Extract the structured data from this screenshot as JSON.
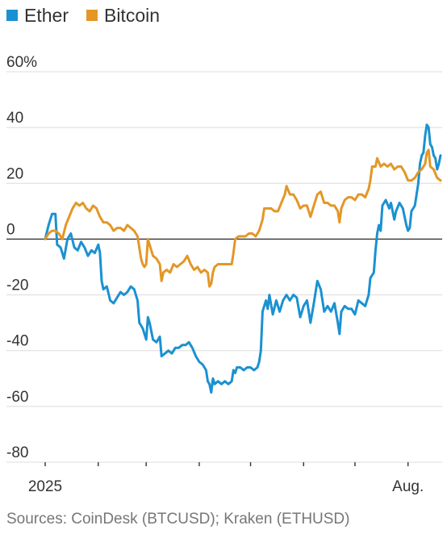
{
  "chart_data": {
    "type": "line",
    "legend_position": "top-left",
    "grid": true,
    "ylim": [
      -80,
      60
    ],
    "y_ticks": [
      {
        "value": 60,
        "label": "60%"
      },
      {
        "value": 40,
        "label": "40"
      },
      {
        "value": 20,
        "label": "20"
      },
      {
        "value": 0,
        "label": "0"
      },
      {
        "value": -20,
        "label": "-20"
      },
      {
        "value": -40,
        "label": "-40"
      },
      {
        "value": -60,
        "label": "-60"
      },
      {
        "value": -80,
        "label": "-80"
      }
    ],
    "x_range": [
      "2025-01-01",
      "2025-08-20"
    ],
    "x_ticks": [
      "2025-01-01",
      "2025-02-01",
      "2025-03-01",
      "2025-04-01",
      "2025-05-01",
      "2025-06-01",
      "2025-07-01",
      "2025-08-01"
    ],
    "x_tick_labels": [
      {
        "date": "2025-01-01",
        "label": "2025"
      },
      {
        "date": "2025-08-01",
        "label": "Aug."
      }
    ],
    "series": [
      {
        "name": "Ether",
        "color": "#1b91d1",
        "points": [
          [
            "2025-01-01",
            0
          ],
          [
            "2025-01-03",
            5
          ],
          [
            "2025-01-05",
            9
          ],
          [
            "2025-01-07",
            9
          ],
          [
            "2025-01-08",
            -2
          ],
          [
            "2025-01-10",
            -3
          ],
          [
            "2025-01-12",
            -7
          ],
          [
            "2025-01-14",
            0
          ],
          [
            "2025-01-16",
            2
          ],
          [
            "2025-01-18",
            -3
          ],
          [
            "2025-01-20",
            -4
          ],
          [
            "2025-01-22",
            -1
          ],
          [
            "2025-01-24",
            -3
          ],
          [
            "2025-01-26",
            -6
          ],
          [
            "2025-01-28",
            -4
          ],
          [
            "2025-01-30",
            -5
          ],
          [
            "2025-02-01",
            -2
          ],
          [
            "2025-02-02",
            -5
          ],
          [
            "2025-02-03",
            -15
          ],
          [
            "2025-02-04",
            -18
          ],
          [
            "2025-02-06",
            -17
          ],
          [
            "2025-02-08",
            -22
          ],
          [
            "2025-02-10",
            -23
          ],
          [
            "2025-02-12",
            -21
          ],
          [
            "2025-02-14",
            -19
          ],
          [
            "2025-02-16",
            -20
          ],
          [
            "2025-02-18",
            -19
          ],
          [
            "2025-02-20",
            -17
          ],
          [
            "2025-02-22",
            -18
          ],
          [
            "2025-02-24",
            -22
          ],
          [
            "2025-02-25",
            -30
          ],
          [
            "2025-02-27",
            -32
          ],
          [
            "2025-02-28",
            -34
          ],
          [
            "2025-03-01",
            -36
          ],
          [
            "2025-03-02",
            -28
          ],
          [
            "2025-03-03",
            -30
          ],
          [
            "2025-03-05",
            -36
          ],
          [
            "2025-03-07",
            -37
          ],
          [
            "2025-03-09",
            -35
          ],
          [
            "2025-03-10",
            -42
          ],
          [
            "2025-03-12",
            -41
          ],
          [
            "2025-03-14",
            -40
          ],
          [
            "2025-03-16",
            -41
          ],
          [
            "2025-03-18",
            -39
          ],
          [
            "2025-03-20",
            -39
          ],
          [
            "2025-03-22",
            -38
          ],
          [
            "2025-03-24",
            -38
          ],
          [
            "2025-03-26",
            -37
          ],
          [
            "2025-03-28",
            -39
          ],
          [
            "2025-03-30",
            -42
          ],
          [
            "2025-04-01",
            -44
          ],
          [
            "2025-04-03",
            -45
          ],
          [
            "2025-04-05",
            -47
          ],
          [
            "2025-04-06",
            -51
          ],
          [
            "2025-04-07",
            -52
          ],
          [
            "2025-04-08",
            -55
          ],
          [
            "2025-04-09",
            -50
          ],
          [
            "2025-04-10",
            -52
          ],
          [
            "2025-04-12",
            -51
          ],
          [
            "2025-04-14",
            -52
          ],
          [
            "2025-04-16",
            -51
          ],
          [
            "2025-04-18",
            -52
          ],
          [
            "2025-04-20",
            -51
          ],
          [
            "2025-04-21",
            -47
          ],
          [
            "2025-04-22",
            -48
          ],
          [
            "2025-04-23",
            -46
          ],
          [
            "2025-04-25",
            -46
          ],
          [
            "2025-04-27",
            -47
          ],
          [
            "2025-04-29",
            -46
          ],
          [
            "2025-05-01",
            -46
          ],
          [
            "2025-05-03",
            -47
          ],
          [
            "2025-05-05",
            -46
          ],
          [
            "2025-05-06",
            -44
          ],
          [
            "2025-05-07",
            -40
          ],
          [
            "2025-05-08",
            -26
          ],
          [
            "2025-05-09",
            -24
          ],
          [
            "2025-05-10",
            -22
          ],
          [
            "2025-05-11",
            -25
          ],
          [
            "2025-05-12",
            -20
          ],
          [
            "2025-05-14",
            -27
          ],
          [
            "2025-05-16",
            -22
          ],
          [
            "2025-05-18",
            -26
          ],
          [
            "2025-05-20",
            -22
          ],
          [
            "2025-05-22",
            -20
          ],
          [
            "2025-05-24",
            -22
          ],
          [
            "2025-05-26",
            -20
          ],
          [
            "2025-05-28",
            -21
          ],
          [
            "2025-05-30",
            -28
          ],
          [
            "2025-06-01",
            -24
          ],
          [
            "2025-06-03",
            -22
          ],
          [
            "2025-06-05",
            -30
          ],
          [
            "2025-06-07",
            -23
          ],
          [
            "2025-06-09",
            -15
          ],
          [
            "2025-06-11",
            -18
          ],
          [
            "2025-06-13",
            -26
          ],
          [
            "2025-06-15",
            -24
          ],
          [
            "2025-06-17",
            -26
          ],
          [
            "2025-06-19",
            -23
          ],
          [
            "2025-06-21",
            -30
          ],
          [
            "2025-06-22",
            -34
          ],
          [
            "2025-06-23",
            -26
          ],
          [
            "2025-06-25",
            -24
          ],
          [
            "2025-06-27",
            -25
          ],
          [
            "2025-06-29",
            -25
          ],
          [
            "2025-07-01",
            -27
          ],
          [
            "2025-07-03",
            -22
          ],
          [
            "2025-07-05",
            -23
          ],
          [
            "2025-07-07",
            -24
          ],
          [
            "2025-07-09",
            -20
          ],
          [
            "2025-07-10",
            -14
          ],
          [
            "2025-07-12",
            -12
          ],
          [
            "2025-07-13",
            -4
          ],
          [
            "2025-07-14",
            2
          ],
          [
            "2025-07-15",
            5
          ],
          [
            "2025-07-16",
            3
          ],
          [
            "2025-07-17",
            12
          ],
          [
            "2025-07-19",
            14
          ],
          [
            "2025-07-21",
            11
          ],
          [
            "2025-07-22",
            13
          ],
          [
            "2025-07-24",
            7
          ],
          [
            "2025-07-25",
            10
          ],
          [
            "2025-07-27",
            13
          ],
          [
            "2025-07-29",
            11
          ],
          [
            "2025-07-31",
            5
          ],
          [
            "2025-08-01",
            3
          ],
          [
            "2025-08-02",
            4
          ],
          [
            "2025-08-03",
            10
          ],
          [
            "2025-08-05",
            12
          ],
          [
            "2025-08-07",
            20
          ],
          [
            "2025-08-08",
            27
          ],
          [
            "2025-08-09",
            30
          ],
          [
            "2025-08-10",
            31
          ],
          [
            "2025-08-11",
            37
          ],
          [
            "2025-08-12",
            41
          ],
          [
            "2025-08-13",
            40
          ],
          [
            "2025-08-14",
            34
          ],
          [
            "2025-08-15",
            33
          ],
          [
            "2025-08-16",
            30
          ],
          [
            "2025-08-17",
            29
          ],
          [
            "2025-08-18",
            25
          ],
          [
            "2025-08-19",
            27
          ],
          [
            "2025-08-20",
            30
          ]
        ]
      },
      {
        "name": "Bitcoin",
        "color": "#e39727",
        "points": [
          [
            "2025-01-01",
            0
          ],
          [
            "2025-01-03",
            2
          ],
          [
            "2025-01-05",
            3
          ],
          [
            "2025-01-07",
            3
          ],
          [
            "2025-01-09",
            2
          ],
          [
            "2025-01-11",
            0
          ],
          [
            "2025-01-13",
            5
          ],
          [
            "2025-01-15",
            8
          ],
          [
            "2025-01-17",
            11
          ],
          [
            "2025-01-19",
            13
          ],
          [
            "2025-01-21",
            12
          ],
          [
            "2025-01-23",
            13
          ],
          [
            "2025-01-25",
            11
          ],
          [
            "2025-01-27",
            10
          ],
          [
            "2025-01-29",
            12
          ],
          [
            "2025-01-31",
            11
          ],
          [
            "2025-02-02",
            8
          ],
          [
            "2025-02-04",
            6
          ],
          [
            "2025-02-06",
            6
          ],
          [
            "2025-02-08",
            5
          ],
          [
            "2025-02-10",
            3
          ],
          [
            "2025-02-12",
            4
          ],
          [
            "2025-02-14",
            4
          ],
          [
            "2025-02-16",
            3
          ],
          [
            "2025-02-18",
            5
          ],
          [
            "2025-02-20",
            4
          ],
          [
            "2025-02-22",
            3
          ],
          [
            "2025-02-24",
            1
          ],
          [
            "2025-02-26",
            -7
          ],
          [
            "2025-02-27",
            -9
          ],
          [
            "2025-02-28",
            -10
          ],
          [
            "2025-03-01",
            -9
          ],
          [
            "2025-03-02",
            0
          ],
          [
            "2025-03-03",
            -2
          ],
          [
            "2025-03-05",
            -6
          ],
          [
            "2025-03-07",
            -7
          ],
          [
            "2025-03-09",
            -9
          ],
          [
            "2025-03-10",
            -15
          ],
          [
            "2025-03-11",
            -12
          ],
          [
            "2025-03-13",
            -11
          ],
          [
            "2025-03-15",
            -12
          ],
          [
            "2025-03-17",
            -9
          ],
          [
            "2025-03-19",
            -10
          ],
          [
            "2025-03-21",
            -9
          ],
          [
            "2025-03-23",
            -8
          ],
          [
            "2025-03-25",
            -6
          ],
          [
            "2025-03-27",
            -9
          ],
          [
            "2025-03-29",
            -11
          ],
          [
            "2025-03-31",
            -10
          ],
          [
            "2025-04-02",
            -12
          ],
          [
            "2025-04-04",
            -11
          ],
          [
            "2025-04-06",
            -12
          ],
          [
            "2025-04-07",
            -17
          ],
          [
            "2025-04-08",
            -16
          ],
          [
            "2025-04-09",
            -12
          ],
          [
            "2025-04-10",
            -10
          ],
          [
            "2025-04-12",
            -9
          ],
          [
            "2025-04-14",
            -9
          ],
          [
            "2025-04-16",
            -9
          ],
          [
            "2025-04-18",
            -9
          ],
          [
            "2025-04-20",
            -9
          ],
          [
            "2025-04-21",
            -5
          ],
          [
            "2025-04-22",
            0
          ],
          [
            "2025-04-24",
            1
          ],
          [
            "2025-04-26",
            1
          ],
          [
            "2025-04-28",
            1
          ],
          [
            "2025-04-30",
            2
          ],
          [
            "2025-05-02",
            2
          ],
          [
            "2025-05-04",
            1
          ],
          [
            "2025-05-06",
            3
          ],
          [
            "2025-05-08",
            7
          ],
          [
            "2025-05-09",
            11
          ],
          [
            "2025-05-11",
            11
          ],
          [
            "2025-05-13",
            11
          ],
          [
            "2025-05-15",
            10
          ],
          [
            "2025-05-17",
            10
          ],
          [
            "2025-05-19",
            13
          ],
          [
            "2025-05-21",
            16
          ],
          [
            "2025-05-22",
            19
          ],
          [
            "2025-05-24",
            16
          ],
          [
            "2025-05-26",
            16
          ],
          [
            "2025-05-28",
            14
          ],
          [
            "2025-05-30",
            11
          ],
          [
            "2025-06-01",
            12
          ],
          [
            "2025-06-03",
            12
          ],
          [
            "2025-06-05",
            8
          ],
          [
            "2025-06-07",
            12
          ],
          [
            "2025-06-09",
            16
          ],
          [
            "2025-06-11",
            17
          ],
          [
            "2025-06-13",
            13
          ],
          [
            "2025-06-15",
            13
          ],
          [
            "2025-06-17",
            12
          ],
          [
            "2025-06-19",
            12
          ],
          [
            "2025-06-21",
            10
          ],
          [
            "2025-06-22",
            6
          ],
          [
            "2025-06-23",
            11
          ],
          [
            "2025-06-25",
            14
          ],
          [
            "2025-06-27",
            15
          ],
          [
            "2025-06-29",
            15
          ],
          [
            "2025-07-01",
            14
          ],
          [
            "2025-07-03",
            16
          ],
          [
            "2025-07-05",
            16
          ],
          [
            "2025-07-07",
            15
          ],
          [
            "2025-07-09",
            18
          ],
          [
            "2025-07-10",
            21
          ],
          [
            "2025-07-11",
            26
          ],
          [
            "2025-07-13",
            26
          ],
          [
            "2025-07-14",
            29
          ],
          [
            "2025-07-16",
            26
          ],
          [
            "2025-07-18",
            27
          ],
          [
            "2025-07-20",
            26
          ],
          [
            "2025-07-22",
            27
          ],
          [
            "2025-07-24",
            25
          ],
          [
            "2025-07-26",
            26
          ],
          [
            "2025-07-28",
            26
          ],
          [
            "2025-07-30",
            24
          ],
          [
            "2025-08-01",
            21
          ],
          [
            "2025-08-03",
            21
          ],
          [
            "2025-08-05",
            22
          ],
          [
            "2025-08-07",
            24
          ],
          [
            "2025-08-09",
            25
          ],
          [
            "2025-08-11",
            27
          ],
          [
            "2025-08-12",
            31
          ],
          [
            "2025-08-13",
            32
          ],
          [
            "2025-08-14",
            26
          ],
          [
            "2025-08-16",
            25
          ],
          [
            "2025-08-18",
            22
          ],
          [
            "2025-08-20",
            21
          ]
        ]
      }
    ]
  },
  "source": "Sources: CoinDesk (BTCUSD); Kraken (ETHUSD)"
}
